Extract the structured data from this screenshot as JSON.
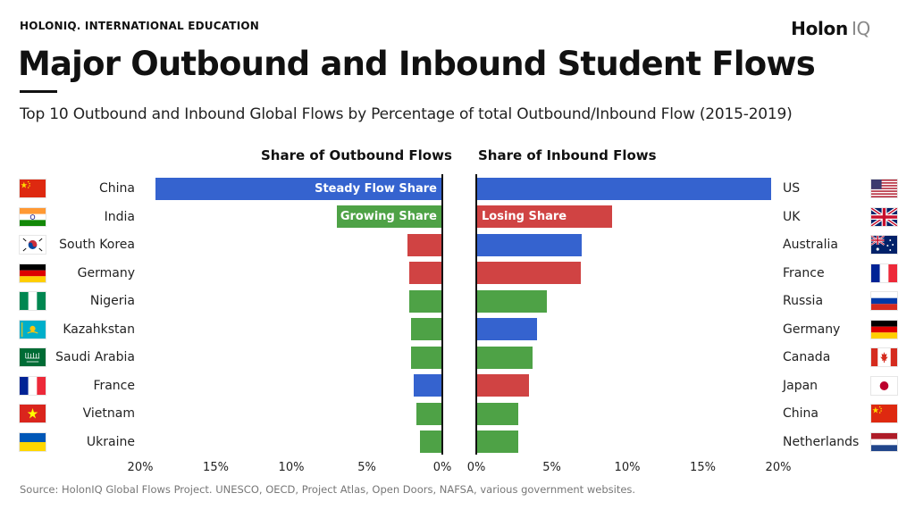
{
  "header": {
    "eyebrow": "HOLONIQ. INTERNATIONAL EDUCATION",
    "brand_main": "Holon",
    "brand_accent": "IQ",
    "title": "Major Outbound and Inbound Student Flows",
    "subtitle": "Top 10 Outbound and Inbound Global Flows by Percentage of total Outbound/Inbound Flow (2015-2019)"
  },
  "colors": {
    "steady": "#3563cf",
    "growing": "#4ea246",
    "losing": "#d04343"
  },
  "chart_data": [
    {
      "type": "bar",
      "title": "Share of Outbound Flows",
      "orientation": "horizontal",
      "direction": "leftward",
      "xlim": [
        0,
        20
      ],
      "x_ticks": [
        "20%",
        "15%",
        "10%",
        "5%",
        "0%"
      ],
      "categories": [
        "China",
        "India",
        "South Korea",
        "Germany",
        "Nigeria",
        "Kazahkstan",
        "Saudi Arabia",
        "France",
        "Vietnam",
        "Ukraine"
      ],
      "values": [
        19,
        7,
        2.3,
        2.2,
        2.2,
        2.1,
        2.1,
        1.9,
        1.7,
        1.5
      ],
      "trend": [
        "steady",
        "growing",
        "losing",
        "losing",
        "growing",
        "growing",
        "growing",
        "steady",
        "growing",
        "growing"
      ],
      "annotations": [
        {
          "bar_index": 0,
          "text": "Steady Flow Share"
        },
        {
          "bar_index": 1,
          "text": "Growing Share"
        }
      ]
    },
    {
      "type": "bar",
      "title": "Share of Inbound Flows",
      "orientation": "horizontal",
      "direction": "rightward",
      "xlim": [
        0,
        20
      ],
      "x_ticks": [
        "0%",
        "5%",
        "10%",
        "15%",
        "20%"
      ],
      "categories": [
        "US",
        "UK",
        "Australia",
        "France",
        "Russia",
        "Germany",
        "Canada",
        "Japan",
        "China",
        "Netherlands"
      ],
      "values": [
        19.5,
        9,
        7,
        6.9,
        4.7,
        4,
        3.7,
        3.5,
        2.8,
        2.8
      ],
      "trend": [
        "steady",
        "losing",
        "steady",
        "losing",
        "growing",
        "steady",
        "growing",
        "losing",
        "growing",
        "growing"
      ],
      "annotations": [
        {
          "bar_index": 1,
          "text": "Losing Share"
        }
      ]
    }
  ],
  "flags": {
    "left": [
      "china-flag",
      "india-flag",
      "south-korea-flag",
      "germany-flag",
      "nigeria-flag",
      "kazakhstan-flag",
      "saudi-arabia-flag",
      "france-flag",
      "vietnam-flag",
      "ukraine-flag"
    ],
    "right": [
      "us-flag",
      "uk-flag",
      "australia-flag",
      "france-flag",
      "russia-flag",
      "germany-flag",
      "canada-flag",
      "japan-flag",
      "china-flag",
      "netherlands-flag"
    ]
  },
  "footer": {
    "source": "Source: HolonIQ Global Flows Project. UNESCO, OECD, Project Atlas, Open Doors, NAFSA, various government websites."
  }
}
